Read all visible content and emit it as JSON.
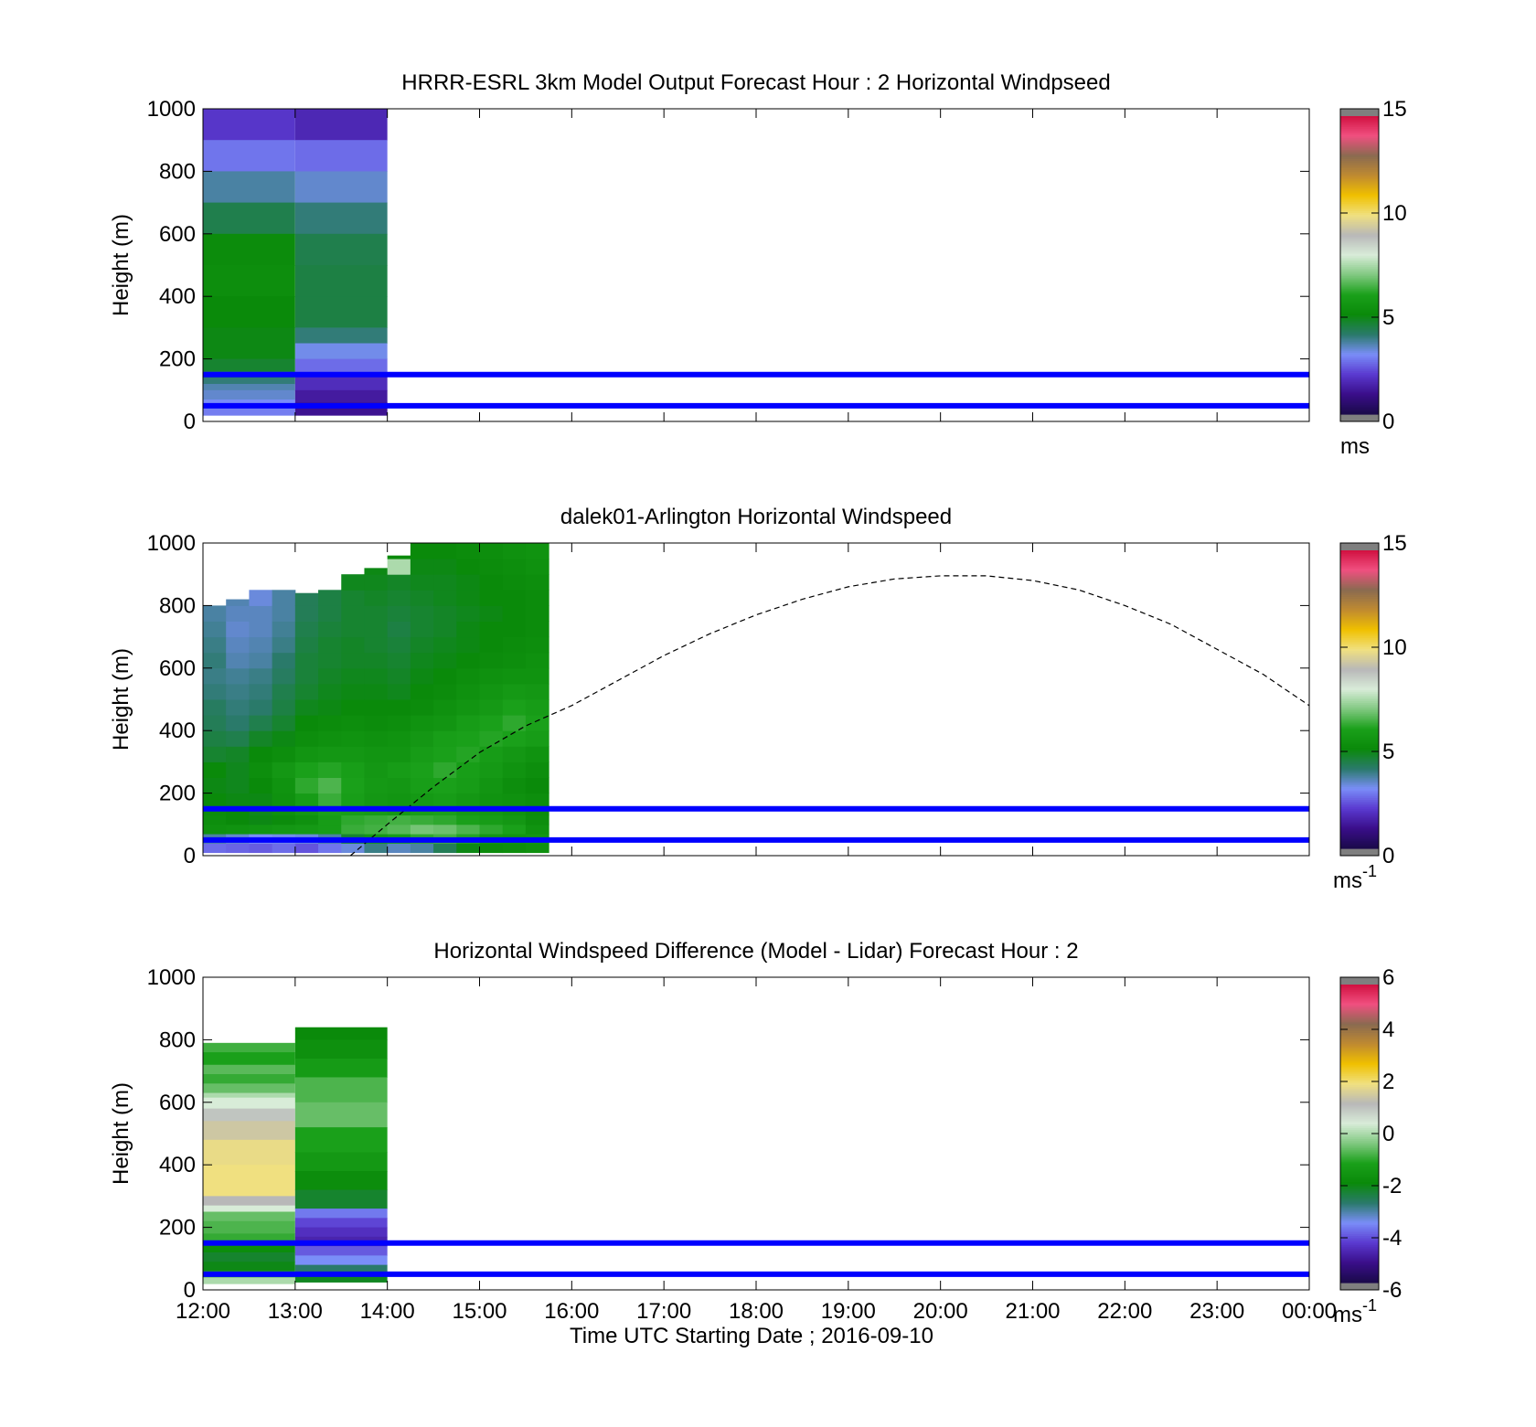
{
  "figure": {
    "xlabel": "Time UTC  Starting Date ; 2016-09-10"
  },
  "chart_data": [
    {
      "type": "heatmap",
      "title": "HRRR-ESRL 3km Model Output   Forecast Hour : 2 Horizontal Windpseed",
      "ylabel": "Height (m)",
      "ylim": [
        0,
        1000
      ],
      "yticks": [
        "0",
        "200",
        "400",
        "600",
        "800",
        "1000"
      ],
      "xlim": [
        12,
        24
      ],
      "xticks": [
        "12:00",
        "13:00",
        "14:00",
        "15:00",
        "16:00",
        "17:00",
        "18:00",
        "19:00",
        "20:00",
        "21:00",
        "22:00",
        "23:00",
        "00:00"
      ],
      "colorbar": {
        "range": [
          0,
          15
        ],
        "ticks": [
          "0",
          "5",
          "10",
          "15"
        ],
        "unit": "ms"
      },
      "reference_lines": [
        {
          "y": 150,
          "color": "#0000ff"
        },
        {
          "y": 50,
          "color": "#0000ff"
        }
      ],
      "columns": [
        {
          "x_start": 12,
          "x_end": 13,
          "cells": [
            {
              "y0": 900,
              "y1": 1000,
              "value": 1.9
            },
            {
              "y0": 800,
              "y1": 900,
              "value": 2.7
            },
            {
              "y0": 700,
              "y1": 800,
              "value": 3.6
            },
            {
              "y0": 600,
              "y1": 700,
              "value": 4.3
            },
            {
              "y0": 500,
              "y1": 600,
              "value": 5.1
            },
            {
              "y0": 400,
              "y1": 500,
              "value": 5.2
            },
            {
              "y0": 300,
              "y1": 400,
              "value": 5.0
            },
            {
              "y0": 200,
              "y1": 300,
              "value": 4.9
            },
            {
              "y0": 160,
              "y1": 200,
              "value": 4.6
            },
            {
              "y0": 140,
              "y1": 160,
              "value": 4.2
            },
            {
              "y0": 120,
              "y1": 140,
              "value": 3.9
            },
            {
              "y0": 100,
              "y1": 120,
              "value": 3.5
            },
            {
              "y0": 70,
              "y1": 100,
              "value": 3.3
            },
            {
              "y0": 40,
              "y1": 70,
              "value": 3.0
            },
            {
              "y0": 20,
              "y1": 40,
              "value": 2.8
            }
          ]
        },
        {
          "x_start": 13,
          "x_end": 14,
          "cells": [
            {
              "y0": 900,
              "y1": 1000,
              "value": 1.6
            },
            {
              "y0": 800,
              "y1": 900,
              "value": 2.6
            },
            {
              "y0": 700,
              "y1": 800,
              "value": 3.3
            },
            {
              "y0": 600,
              "y1": 700,
              "value": 3.9
            },
            {
              "y0": 500,
              "y1": 600,
              "value": 4.3
            },
            {
              "y0": 400,
              "y1": 500,
              "value": 4.4
            },
            {
              "y0": 300,
              "y1": 400,
              "value": 4.4
            },
            {
              "y0": 250,
              "y1": 300,
              "value": 3.9
            },
            {
              "y0": 200,
              "y1": 250,
              "value": 3.1
            },
            {
              "y0": 150,
              "y1": 200,
              "value": 2.6
            },
            {
              "y0": 100,
              "y1": 150,
              "value": 1.7
            },
            {
              "y0": 60,
              "y1": 100,
              "value": 1.3
            },
            {
              "y0": 20,
              "y1": 60,
              "value": 1.1
            }
          ]
        }
      ]
    },
    {
      "type": "heatmap",
      "title": "dalek01-Arlington  Horizontal Windspeed",
      "ylabel": "Height (m)",
      "ylim": [
        0,
        1000
      ],
      "yticks": [
        "0",
        "200",
        "400",
        "600",
        "800",
        "1000"
      ],
      "xlim": [
        12,
        24
      ],
      "xticks": [
        "12:00",
        "13:00",
        "14:00",
        "15:00",
        "16:00",
        "17:00",
        "18:00",
        "19:00",
        "20:00",
        "21:00",
        "22:00",
        "23:00",
        "00:00"
      ],
      "colorbar": {
        "range": [
          0,
          15
        ],
        "ticks": [
          "0",
          "5",
          "10",
          "15"
        ],
        "unit": "ms",
        "unit_superscript": "-1"
      },
      "reference_lines": [
        {
          "y": 150,
          "color": "#0000ff"
        },
        {
          "y": 50,
          "color": "#0000ff"
        }
      ],
      "dashed_curve": {
        "x": [
          13.6,
          14,
          14.5,
          15,
          15.5,
          16,
          16.5,
          17,
          17.5,
          18,
          18.5,
          19,
          19.5,
          20,
          20.5,
          21,
          21.5,
          22,
          22.5,
          23,
          23.5,
          24
        ],
        "y": [
          0,
          100,
          220,
          330,
          415,
          480,
          560,
          640,
          710,
          770,
          820,
          860,
          885,
          895,
          895,
          880,
          850,
          800,
          740,
          660,
          580,
          480
        ]
      },
      "time_columns": [
        12.125,
        12.375,
        12.625,
        12.875,
        13.125,
        13.375,
        13.625,
        13.875,
        14.125,
        14.375,
        14.625,
        14.875,
        15.125,
        15.375,
        15.625
      ],
      "column_tops": [
        800,
        820,
        860,
        860,
        840,
        860,
        900,
        920,
        960,
        1000,
        1000,
        1000,
        1000,
        1000,
        1000
      ],
      "height_bins": [
        10,
        40,
        70,
        100,
        130,
        160,
        200,
        250,
        300,
        350,
        400,
        450,
        500,
        550,
        600,
        650,
        700,
        750,
        800,
        850,
        900,
        950,
        1000
      ],
      "speeds": [
        [
          2.6,
          2.5,
          2.4,
          2.6,
          2.3,
          2.7,
          3.2,
          3.8,
          3.4,
          3.6,
          4.2,
          4.9,
          5.1,
          5.2,
          5.3
        ],
        [
          3.6,
          3.3,
          3.0,
          3.1,
          3.2,
          3.6,
          4.6,
          5.6,
          5.8,
          6.2,
          6.4,
          6.1,
          5.6,
          5.5,
          5.6
        ],
        [
          5.3,
          5.4,
          5.5,
          5.6,
          5.7,
          5.8,
          6.3,
          6.4,
          6.6,
          6.9,
          6.8,
          6.5,
          6.2,
          6.0,
          5.4
        ],
        [
          5.2,
          5.0,
          4.9,
          5.1,
          5.3,
          5.8,
          6.2,
          6.3,
          6.4,
          6.3,
          6.2,
          6.0,
          5.8,
          5.6,
          5.2
        ],
        [
          5.1,
          5.0,
          4.8,
          5.3,
          5.6,
          6.0,
          5.9,
          5.8,
          5.7,
          5.9,
          6.0,
          5.7,
          5.6,
          5.4,
          5.1
        ],
        [
          5.0,
          4.9,
          4.9,
          5.3,
          5.8,
          6.3,
          5.9,
          5.6,
          5.5,
          5.7,
          5.8,
          5.6,
          5.4,
          5.3,
          5.2
        ],
        [
          4.9,
          4.8,
          5.0,
          5.4,
          6.2,
          6.5,
          6.0,
          5.7,
          5.6,
          5.9,
          6.0,
          5.8,
          5.5,
          5.2,
          5.0
        ],
        [
          5.0,
          4.8,
          5.2,
          5.6,
          6.0,
          6.1,
          5.9,
          5.6,
          5.8,
          6.0,
          6.2,
          5.9,
          5.7,
          5.4,
          5.2
        ],
        [
          4.6,
          4.7,
          5.0,
          5.2,
          5.5,
          5.6,
          5.6,
          5.5,
          5.5,
          5.8,
          6.0,
          6.1,
          5.8,
          5.6,
          5.4
        ],
        [
          4.4,
          4.3,
          4.7,
          4.9,
          5.2,
          5.3,
          5.4,
          5.3,
          5.4,
          5.6,
          5.9,
          6.0,
          6.1,
          6.0,
          5.8
        ],
        [
          4.2,
          4.0,
          4.3,
          4.6,
          5.0,
          5.1,
          5.2,
          5.1,
          5.2,
          5.4,
          5.5,
          5.8,
          6.0,
          6.2,
          6.0
        ],
        [
          4.1,
          3.9,
          4.0,
          4.4,
          4.8,
          4.9,
          5.0,
          5.0,
          5.0,
          5.1,
          5.3,
          5.5,
          5.7,
          6.0,
          5.8
        ],
        [
          3.9,
          3.8,
          3.9,
          4.3,
          4.6,
          4.8,
          4.9,
          4.9,
          4.8,
          5.0,
          5.1,
          5.3,
          5.5,
          5.7,
          5.6
        ],
        [
          3.8,
          3.7,
          3.8,
          4.1,
          4.5,
          4.7,
          4.8,
          4.8,
          4.7,
          4.9,
          5.0,
          5.2,
          5.3,
          5.4,
          5.4
        ],
        [
          3.9,
          3.5,
          3.6,
          4.0,
          4.5,
          4.6,
          4.7,
          4.7,
          4.6,
          4.8,
          4.9,
          5.0,
          5.1,
          5.2,
          5.3
        ],
        [
          3.8,
          3.4,
          3.5,
          3.8,
          4.4,
          4.6,
          4.7,
          4.6,
          4.5,
          4.7,
          4.8,
          4.9,
          5.0,
          5.1,
          5.2
        ],
        [
          3.7,
          3.3,
          3.4,
          3.7,
          4.3,
          4.5,
          4.6,
          4.6,
          4.4,
          4.6,
          4.7,
          4.9,
          5.0,
          5.0,
          5.1
        ],
        [
          3.6,
          3.4,
          3.4,
          3.6,
          4.2,
          4.4,
          4.6,
          4.6,
          4.5,
          4.6,
          4.7,
          4.8,
          4.9,
          5.0,
          5.1
        ],
        [
          3.5,
          3.5,
          3.2,
          3.6,
          4.2,
          4.4,
          4.6,
          4.7,
          4.6,
          4.7,
          4.8,
          4.9,
          5.0,
          5.0,
          5.1
        ],
        [
          null,
          null,
          null,
          null,
          3.0,
          null,
          4.8,
          4.8,
          4.7,
          4.8,
          4.8,
          4.9,
          5.0,
          5.1,
          5.2
        ],
        [
          null,
          null,
          null,
          null,
          null,
          null,
          null,
          4.9,
          7.5,
          4.9,
          4.9,
          5.0,
          5.1,
          5.2,
          5.3
        ],
        [
          null,
          null,
          null,
          null,
          null,
          4.9,
          null,
          null,
          5.0,
          5.0,
          5.0,
          5.1,
          5.2,
          5.3,
          5.4
        ]
      ]
    },
    {
      "type": "heatmap",
      "title": "Horizontal Windspeed Difference (Model - Lidar) Forecast Hour : 2",
      "ylabel": "Height (m)",
      "ylim": [
        0,
        1000
      ],
      "yticks": [
        "0",
        "200",
        "400",
        "600",
        "800",
        "1000"
      ],
      "xlim": [
        12,
        24
      ],
      "xticks": [
        "12:00",
        "13:00",
        "14:00",
        "15:00",
        "16:00",
        "17:00",
        "18:00",
        "19:00",
        "20:00",
        "21:00",
        "22:00",
        "23:00",
        "00:00"
      ],
      "colorbar": {
        "range": [
          -6,
          6
        ],
        "ticks": [
          "-6",
          "-4",
          "-2",
          "0",
          "2",
          "4",
          "6"
        ],
        "unit": "ms",
        "unit_superscript": "-1"
      },
      "reference_lines": [
        {
          "y": 150,
          "color": "#0000ff"
        },
        {
          "y": 50,
          "color": "#0000ff"
        }
      ],
      "columns": [
        {
          "x_start": 12,
          "x_end": 13,
          "cells": [
            {
              "y0": 760,
              "y1": 790,
              "value": -0.9
            },
            {
              "y0": 720,
              "y1": 760,
              "value": -1.2
            },
            {
              "y0": 690,
              "y1": 720,
              "value": -0.7
            },
            {
              "y0": 660,
              "y1": 690,
              "value": -1.0
            },
            {
              "y0": 630,
              "y1": 660,
              "value": -0.6
            },
            {
              "y0": 615,
              "y1": 630,
              "value": 0.0
            },
            {
              "y0": 580,
              "y1": 615,
              "value": 0.4
            },
            {
              "y0": 540,
              "y1": 580,
              "value": 1.0
            },
            {
              "y0": 480,
              "y1": 540,
              "value": 1.5
            },
            {
              "y0": 400,
              "y1": 480,
              "value": 1.9
            },
            {
              "y0": 300,
              "y1": 400,
              "value": 2.0
            },
            {
              "y0": 270,
              "y1": 300,
              "value": 1.2
            },
            {
              "y0": 250,
              "y1": 270,
              "value": 0.4
            },
            {
              "y0": 220,
              "y1": 250,
              "value": -0.6
            },
            {
              "y0": 180,
              "y1": 220,
              "value": -0.8
            },
            {
              "y0": 150,
              "y1": 180,
              "value": -1.0
            },
            {
              "y0": 120,
              "y1": 150,
              "value": -1.9
            },
            {
              "y0": 90,
              "y1": 120,
              "value": -2.3
            },
            {
              "y0": 60,
              "y1": 90,
              "value": -2.1
            },
            {
              "y0": 40,
              "y1": 60,
              "value": -1.0
            },
            {
              "y0": 20,
              "y1": 40,
              "value": 0.0
            }
          ]
        },
        {
          "x_start": 13,
          "x_end": 14,
          "cells": [
            {
              "y0": 800,
              "y1": 840,
              "value": -2.0
            },
            {
              "y0": 740,
              "y1": 800,
              "value": -1.8
            },
            {
              "y0": 680,
              "y1": 740,
              "value": -1.4
            },
            {
              "y0": 600,
              "y1": 680,
              "value": -0.8
            },
            {
              "y0": 520,
              "y1": 600,
              "value": -0.6
            },
            {
              "y0": 440,
              "y1": 520,
              "value": -1.2
            },
            {
              "y0": 380,
              "y1": 440,
              "value": -1.5
            },
            {
              "y0": 320,
              "y1": 380,
              "value": -1.9
            },
            {
              "y0": 260,
              "y1": 320,
              "value": -2.3
            },
            {
              "y0": 230,
              "y1": 260,
              "value": -3.8
            },
            {
              "y0": 200,
              "y1": 230,
              "value": -4.3
            },
            {
              "y0": 170,
              "y1": 200,
              "value": -4.6
            },
            {
              "y0": 140,
              "y1": 170,
              "value": -4.8
            },
            {
              "y0": 110,
              "y1": 140,
              "value": -4.1
            },
            {
              "y0": 80,
              "y1": 110,
              "value": -3.6
            },
            {
              "y0": 50,
              "y1": 80,
              "value": -2.8
            },
            {
              "y0": 25,
              "y1": 50,
              "value": -2.2
            }
          ]
        }
      ]
    }
  ],
  "colors": {
    "reference_line": "#0000ff",
    "dashed_curve": "#000000",
    "colorbar_endcap": "#7f7f7f",
    "colormap": [
      "#1a0a4a",
      "#3a0e8a",
      "#5a3ad0",
      "#7a8ef8",
      "#2a7a6a",
      "#0a8a0a",
      "#1aa01a",
      "#80c880",
      "#d8ecd8",
      "#b8b8b8",
      "#f0e080",
      "#f0c000",
      "#c08a30",
      "#8a6a50",
      "#f05080",
      "#d01040"
    ]
  }
}
